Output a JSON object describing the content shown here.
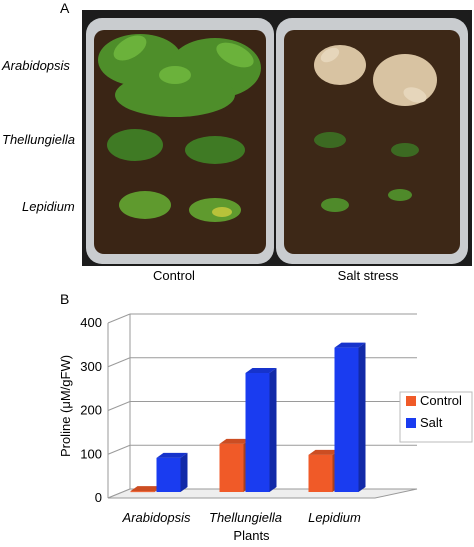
{
  "panel_a": {
    "letter": "A",
    "row_labels": [
      "Arabidopsis",
      "Thellungiella",
      "Lepidium"
    ],
    "tray_labels": [
      "Control",
      "Salt stress"
    ]
  },
  "panel_b": {
    "letter": "B"
  },
  "colors": {
    "control": "#f05a28",
    "salt": "#1a3cf0",
    "grid": "#9a9a9a"
  },
  "chart_data": {
    "type": "bar",
    "categories": [
      "Arabidopsis",
      "Thellungiella",
      "Lepidium"
    ],
    "series": [
      {
        "name": "Control",
        "values": [
          2,
          110,
          85
        ]
      },
      {
        "name": "Salt",
        "values": [
          78,
          272,
          330
        ]
      }
    ],
    "title": "",
    "xlabel": "Plants",
    "ylabel": "Proline (μM/gFW)",
    "ylim": [
      0,
      400
    ],
    "yticks": [
      0,
      100,
      200,
      300,
      400
    ],
    "grid": true,
    "legend_position": "right",
    "style": "3d"
  }
}
